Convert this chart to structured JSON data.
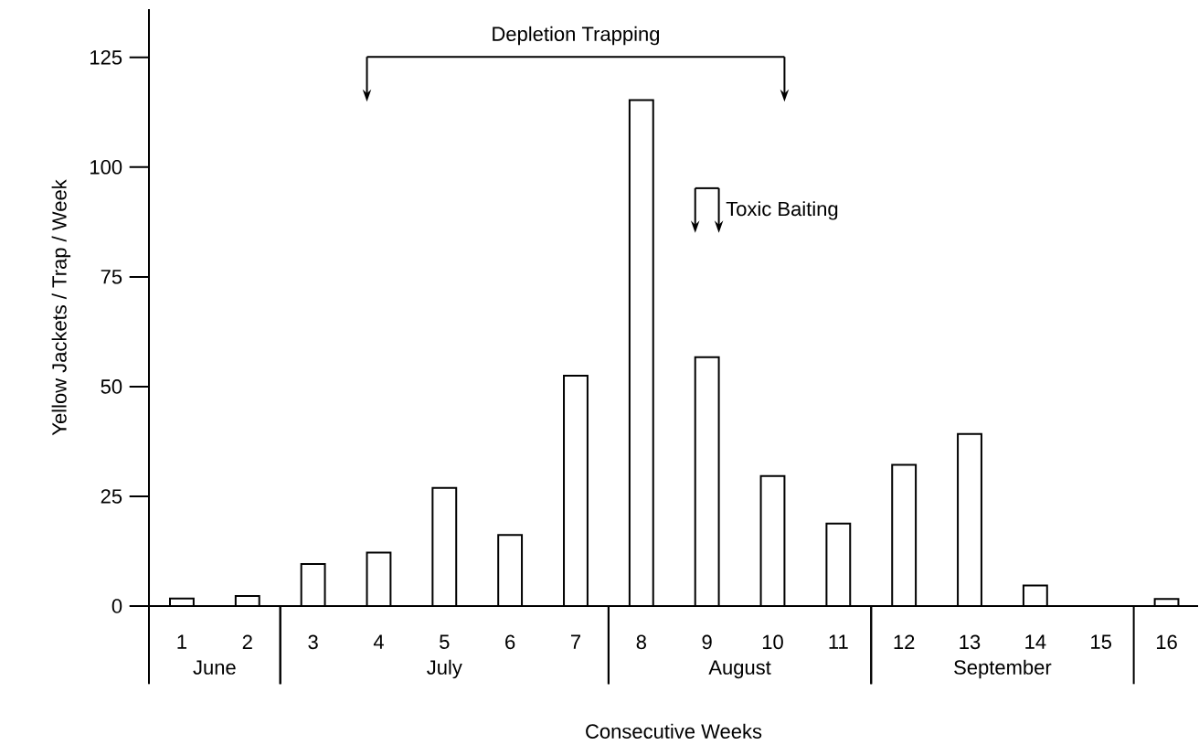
{
  "chart_data": {
    "type": "bar",
    "xlabel": "Consecutive Weeks",
    "ylabel": "Yellow Jackets / Trap / Week",
    "categories": [
      "1",
      "2",
      "3",
      "4",
      "5",
      "6",
      "7",
      "8",
      "9",
      "10",
      "11",
      "12",
      "13",
      "14",
      "15",
      "16"
    ],
    "values": [
      1.7,
      2.3,
      9.6,
      12.2,
      26.9,
      16.2,
      52.5,
      115.3,
      56.7,
      29.6,
      18.8,
      32.2,
      39.2,
      4.7,
      null,
      1.6
    ],
    "color": "#ffffff",
    "ylim": [
      0,
      136
    ],
    "yticks": [
      0,
      25,
      50,
      75,
      100,
      125
    ],
    "annotations": [
      "June",
      "July",
      "August",
      "September",
      "Depletion Trapping",
      "Toxic Baiting"
    ],
    "grid": false
  }
}
